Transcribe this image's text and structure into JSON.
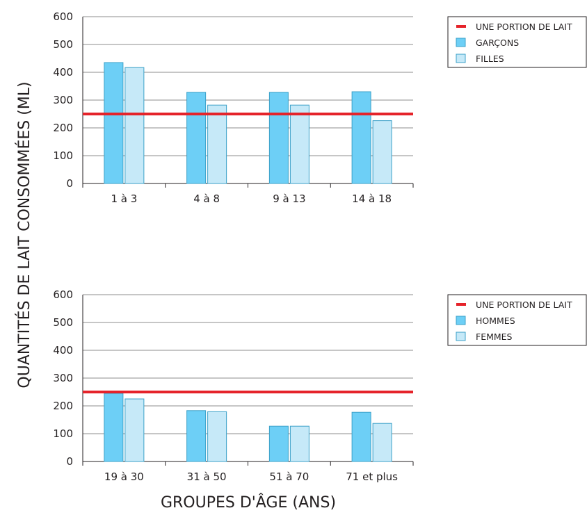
{
  "ylabel": "QUANTITÉS DE LAIT CONSOMMÉES (ML)",
  "xlabel": "GROUPES D'ÂGE (ANS)",
  "colors": {
    "series1": "#6dcff6",
    "series2": "#c6e9f8",
    "reference": "#e5232a",
    "stroke": "#3ba0c8",
    "grid": "#8c8c8c"
  },
  "chart_data": [
    {
      "type": "bar",
      "categories": [
        "1 à 3",
        "4 à 8",
        "9 à 13",
        "14 à 18"
      ],
      "series": [
        {
          "name": "GARÇONS",
          "values": [
            435,
            328,
            328,
            330
          ]
        },
        {
          "name": "FILLES",
          "values": [
            417,
            282,
            282,
            226
          ]
        }
      ],
      "reference_line": {
        "name": "UNE PORTION DE LAIT",
        "value": 250
      },
      "ylim": [
        0,
        600
      ],
      "yticks": [
        0,
        100,
        200,
        300,
        400,
        500,
        600
      ],
      "grid": true,
      "legend": "top-right"
    },
    {
      "type": "bar",
      "categories": [
        "19 à 30",
        "31 à 50",
        "51 à 70",
        "71 et plus"
      ],
      "series": [
        {
          "name": "HOMMES",
          "values": [
            245,
            183,
            127,
            177
          ]
        },
        {
          "name": "FEMMES",
          "values": [
            225,
            179,
            127,
            137
          ]
        }
      ],
      "reference_line": {
        "name": "UNE PORTION DE LAIT",
        "value": 250
      },
      "ylim": [
        0,
        600
      ],
      "yticks": [
        0,
        100,
        200,
        300,
        400,
        500,
        600
      ],
      "grid": true,
      "legend": "top-right"
    }
  ]
}
